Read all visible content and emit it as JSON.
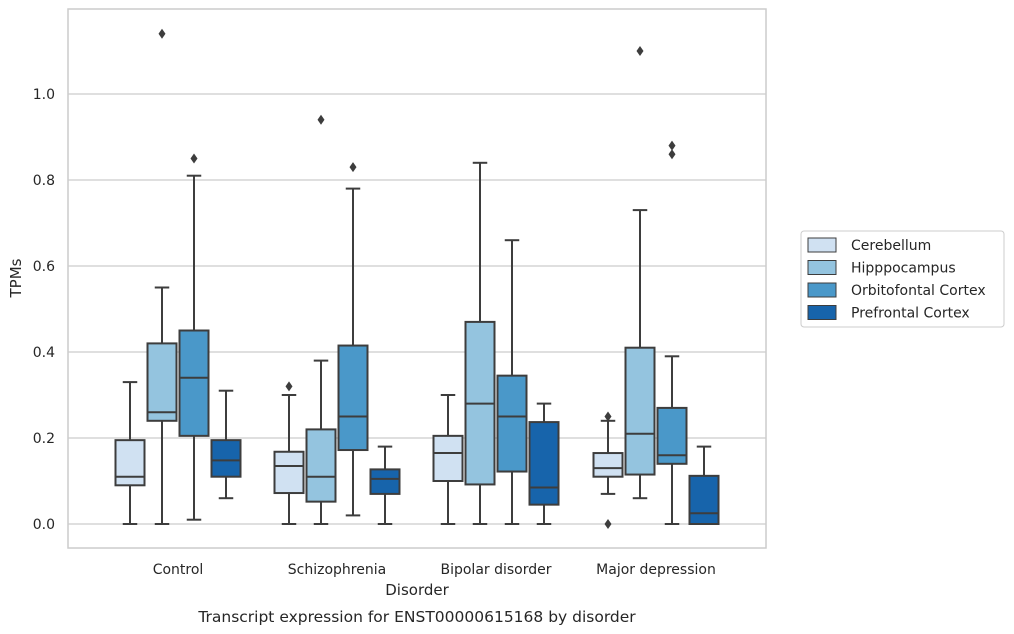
{
  "chart_data": {
    "type": "box",
    "caption": "Transcript expression for ENST00000615168 by disorder",
    "xlabel": "Disorder",
    "ylabel": "TPMs",
    "ylim": [
      -0.055,
      1.19
    ],
    "yticks": [
      "0.0",
      "0.2",
      "0.4",
      "0.6",
      "0.8",
      "1.0"
    ],
    "ytick_values": [
      0.0,
      0.2,
      0.4,
      0.6,
      0.8,
      1.0
    ],
    "grid": true,
    "legend_position": "right",
    "categories": [
      "Control",
      "Schizophrenia",
      "Bipolar disorder",
      "Major depression"
    ],
    "series": [
      {
        "name": "Cerebellum",
        "color": "#d0e1f2",
        "boxes": [
          {
            "whislo": 0.0,
            "q1": 0.09,
            "med": 0.11,
            "q3": 0.195,
            "whishi": 0.33,
            "fliers": []
          },
          {
            "whislo": 0.0,
            "q1": 0.072,
            "med": 0.135,
            "q3": 0.168,
            "whishi": 0.3,
            "fliers": [
              0.32
            ]
          },
          {
            "whislo": 0.0,
            "q1": 0.1,
            "med": 0.165,
            "q3": 0.205,
            "whishi": 0.3,
            "fliers": []
          },
          {
            "whislo": 0.07,
            "q1": 0.11,
            "med": 0.13,
            "q3": 0.165,
            "whishi": 0.24,
            "fliers": [
              0.0,
              0.25
            ]
          }
        ]
      },
      {
        "name": "Hipppocampus",
        "color": "#94c4df",
        "boxes": [
          {
            "whislo": 0.0,
            "q1": 0.24,
            "med": 0.26,
            "q3": 0.42,
            "whishi": 0.55,
            "fliers": [
              1.14
            ]
          },
          {
            "whislo": 0.0,
            "q1": 0.052,
            "med": 0.11,
            "q3": 0.22,
            "whishi": 0.38,
            "fliers": [
              0.94
            ]
          },
          {
            "whislo": 0.0,
            "q1": 0.092,
            "med": 0.28,
            "q3": 0.47,
            "whishi": 0.84,
            "fliers": []
          },
          {
            "whislo": 0.06,
            "q1": 0.115,
            "med": 0.21,
            "q3": 0.41,
            "whishi": 0.73,
            "fliers": [
              1.1
            ]
          }
        ]
      },
      {
        "name": "Orbitofontal Cortex",
        "color": "#4a98c9",
        "boxes": [
          {
            "whislo": 0.01,
            "q1": 0.205,
            "med": 0.34,
            "q3": 0.45,
            "whishi": 0.81,
            "fliers": [
              0.85
            ]
          },
          {
            "whislo": 0.02,
            "q1": 0.172,
            "med": 0.25,
            "q3": 0.415,
            "whishi": 0.78,
            "fliers": [
              0.83
            ]
          },
          {
            "whislo": 0.0,
            "q1": 0.122,
            "med": 0.25,
            "q3": 0.345,
            "whishi": 0.66,
            "fliers": []
          },
          {
            "whislo": 0.0,
            "q1": 0.14,
            "med": 0.16,
            "q3": 0.27,
            "whishi": 0.39,
            "fliers": [
              0.86,
              0.88
            ]
          }
        ]
      },
      {
        "name": "Prefrontal Cortex",
        "color": "#1764ab",
        "boxes": [
          {
            "whislo": 0.06,
            "q1": 0.11,
            "med": 0.148,
            "q3": 0.195,
            "whishi": 0.31,
            "fliers": []
          },
          {
            "whislo": 0.0,
            "q1": 0.07,
            "med": 0.105,
            "q3": 0.127,
            "whishi": 0.18,
            "fliers": []
          },
          {
            "whislo": 0.0,
            "q1": 0.045,
            "med": 0.085,
            "q3": 0.237,
            "whishi": 0.28,
            "fliers": []
          },
          {
            "whislo": 0.0,
            "q1": 0.0,
            "med": 0.025,
            "q3": 0.112,
            "whishi": 0.18,
            "fliers": []
          }
        ]
      }
    ]
  }
}
